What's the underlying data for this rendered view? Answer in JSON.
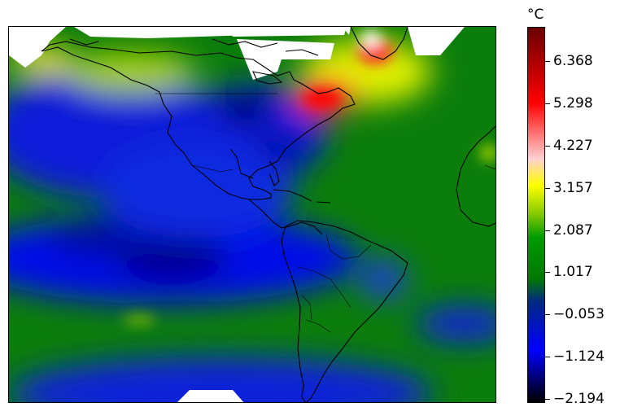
{
  "colorbar": {
    "unit": "°C",
    "ticks": [
      "6.368",
      "5.298",
      "4.227",
      "3.157",
      "2.087",
      "1.017",
      "−0.053",
      "−1.124",
      "−2.194"
    ],
    "min": -2.194,
    "max": 7.0,
    "colors": [
      "#000000",
      "#0000ff",
      "#007a00",
      "#00a000",
      "#ffff00",
      "#ffc0c0",
      "#ff0000",
      "#7a0000"
    ]
  },
  "map": {
    "region": "Americas",
    "land_outline_color": "#000000",
    "missing_color": "#ffffff"
  }
}
